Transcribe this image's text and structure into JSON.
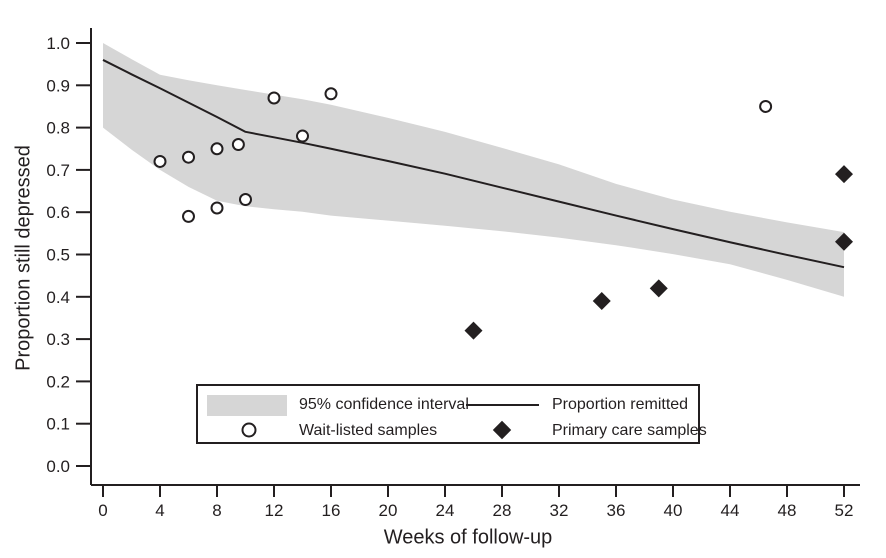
{
  "figure": {
    "background_color": "#ffffff",
    "ink_color": "#231f20",
    "band_color": "#d6d6d6"
  },
  "chart_data": {
    "type": "line",
    "subtype": "confidence-band line with two scatter series",
    "title": "",
    "xlabel": "Weeks of follow-up",
    "ylabel": "Proportion still depressed",
    "xlim": [
      0,
      52
    ],
    "ylim": [
      0.0,
      1.0
    ],
    "grid": "off",
    "legend_position": "boxed, lower-center of plot area",
    "x_ticks": [
      0,
      4,
      8,
      12,
      16,
      20,
      24,
      28,
      32,
      36,
      40,
      44,
      48,
      52
    ],
    "y_tick_labels": [
      "0.0",
      "0.1",
      "0.2",
      "0.3",
      "0.4",
      "0.5",
      "0.6",
      "0.7",
      "0.8",
      "0.9",
      "1.0"
    ],
    "y_tick_values": [
      0.0,
      0.1,
      0.2,
      0.3,
      0.4,
      0.5,
      0.6,
      0.7,
      0.8,
      0.9,
      1.0
    ],
    "band": {
      "name": "95% confidence interval",
      "x": [
        0,
        2,
        4,
        6,
        8,
        10,
        12,
        14,
        16,
        20,
        24,
        28,
        32,
        36,
        40,
        44,
        48,
        52
      ],
      "upper": [
        1.0,
        0.962,
        0.925,
        0.912,
        0.9,
        0.889,
        0.878,
        0.867,
        0.854,
        0.823,
        0.79,
        0.752,
        0.713,
        0.667,
        0.63,
        0.601,
        0.576,
        0.553
      ],
      "lower": [
        0.8,
        0.748,
        0.7,
        0.66,
        0.627,
        0.614,
        0.607,
        0.601,
        0.592,
        0.58,
        0.568,
        0.555,
        0.54,
        0.522,
        0.501,
        0.477,
        0.44,
        0.4
      ]
    },
    "line": {
      "name": "Proportion remitted",
      "x": [
        0,
        2,
        4,
        6,
        8,
        10,
        12,
        14,
        16,
        20,
        24,
        28,
        32,
        36,
        40,
        44,
        48,
        52
      ],
      "y": [
        0.96,
        0.926,
        0.893,
        0.859,
        0.825,
        0.79,
        0.777,
        0.764,
        0.75,
        0.721,
        0.691,
        0.658,
        0.625,
        0.592,
        0.56,
        0.529,
        0.499,
        0.47
      ]
    },
    "scatter": [
      {
        "name": "Wait-listed samples",
        "marker": "open-circle",
        "points": [
          [
            4,
            0.72
          ],
          [
            6,
            0.73
          ],
          [
            6,
            0.59
          ],
          [
            8,
            0.75
          ],
          [
            8,
            0.61
          ],
          [
            9.5,
            0.76
          ],
          [
            10,
            0.63
          ],
          [
            12,
            0.87
          ],
          [
            14,
            0.78
          ],
          [
            16,
            0.88
          ],
          [
            46.5,
            0.85
          ]
        ]
      },
      {
        "name": "Primary care samples",
        "marker": "filled-diamond",
        "points": [
          [
            26,
            0.32
          ],
          [
            35,
            0.39
          ],
          [
            39,
            0.42
          ],
          [
            52,
            0.53
          ],
          [
            52,
            0.69
          ]
        ]
      }
    ]
  }
}
